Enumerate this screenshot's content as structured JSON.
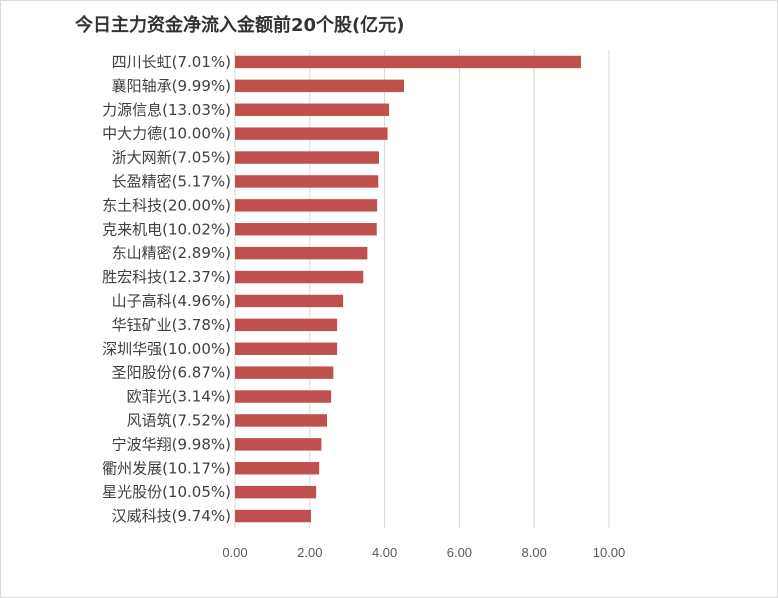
{
  "chart_data": {
    "type": "bar",
    "orientation": "horizontal",
    "title": "今日主力资金净流入金额前20个股(亿元)",
    "categories": [
      "四川长虹(7.01%)",
      "襄阳轴承(9.99%)",
      "力源信息(13.03%)",
      "中大力德(10.00%)",
      "浙大网新(7.05%)",
      "长盈精密(5.17%)",
      "东土科技(20.00%)",
      "克来机电(10.02%)",
      "东山精密(2.89%)",
      "胜宏科技(12.37%)",
      "山子高科(4.96%)",
      "华钰矿业(3.78%)",
      "深圳华强(10.00%)",
      "圣阳股份(6.87%)",
      "欧菲光(3.14%)",
      "风语筑(7.52%)",
      "宁波华翔(9.98%)",
      "衢州发展(10.17%)",
      "星光股份(10.05%)",
      "汉威科技(9.74%)"
    ],
    "values": [
      9.25,
      4.52,
      4.12,
      4.08,
      3.85,
      3.83,
      3.8,
      3.79,
      3.54,
      3.43,
      2.89,
      2.73,
      2.73,
      2.63,
      2.57,
      2.46,
      2.31,
      2.25,
      2.17,
      2.03
    ],
    "xlim": [
      0,
      10
    ],
    "xticks": [
      "0.00",
      "2.00",
      "4.00",
      "6.00",
      "8.00",
      "10.00"
    ],
    "bar_color": "#c0504d",
    "grid": true,
    "legend": "none"
  }
}
